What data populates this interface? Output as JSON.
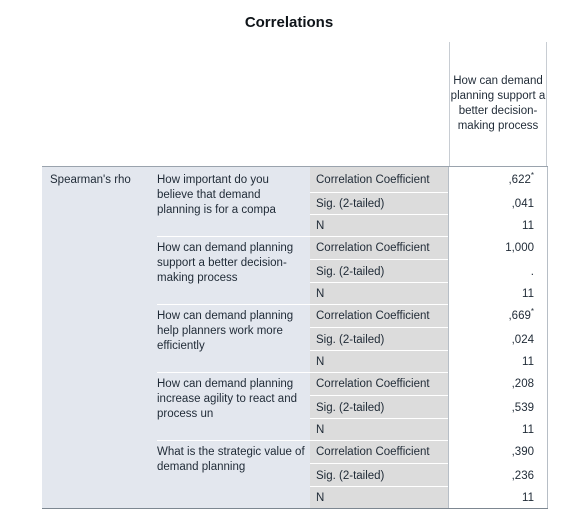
{
  "title": "Correlations",
  "column_header": "How can demand planning support a better decision-making process",
  "row_group": "Spearman's rho",
  "variables": [
    {
      "label": "How important do you believe that demand planning is for a compa",
      "coefficient": ",622",
      "coefficient_mark": "*",
      "sig": ",041",
      "n": "11"
    },
    {
      "label": "How can demand planning support a better decision-making process",
      "coefficient": "1,000",
      "coefficient_mark": "",
      "sig": ".",
      "n": "11"
    },
    {
      "label": "How can demand planning help planners work more efficiently",
      "coefficient": ",669",
      "coefficient_mark": "*",
      "sig": ",024",
      "n": "11"
    },
    {
      "label": "How can demand planning increase agility to react and process un",
      "coefficient": ",208",
      "coefficient_mark": "",
      "sig": ",539",
      "n": "11"
    },
    {
      "label": "What is the strategic value of demand planning",
      "coefficient": ",390",
      "coefficient_mark": "",
      "sig": ",236",
      "n": "11"
    }
  ],
  "stat_labels": {
    "coefficient": "Correlation Coefficient",
    "sig": "Sig. (2-tailed)",
    "n": "N"
  },
  "colors": {
    "label_bg": "#e3e7ee",
    "stat_bg": "#dcdcdc",
    "value_bg": "#ffffff",
    "text": "#1f2a36"
  }
}
